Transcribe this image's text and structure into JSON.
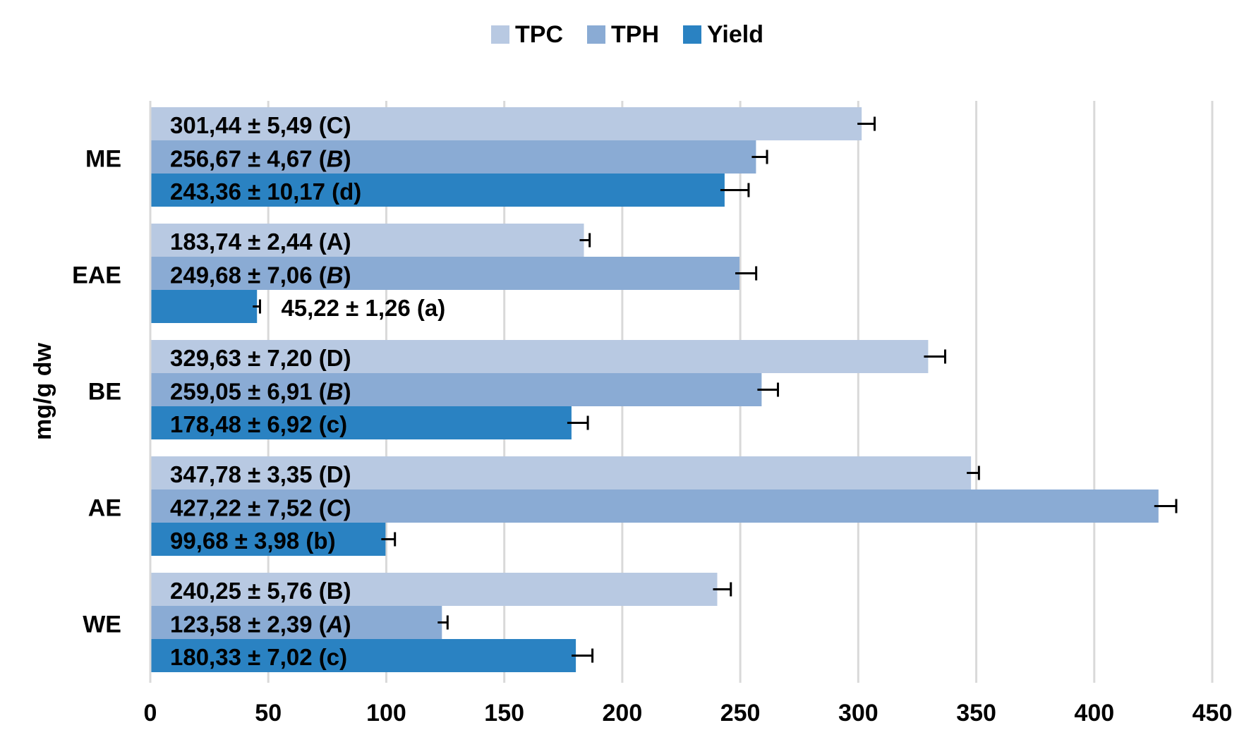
{
  "chart_data": {
    "type": "bar",
    "orientation": "horizontal",
    "categories": [
      "ME",
      "EAE",
      "BE",
      "AE",
      "WE"
    ],
    "ylabel": "mg/g dw",
    "xlim": [
      0,
      450
    ],
    "xticks": [
      0,
      50,
      100,
      150,
      200,
      250,
      300,
      350,
      400,
      450
    ],
    "grid": "vertical",
    "legend_position": "top",
    "series": [
      {
        "name": "TPC",
        "color": "#b8c9e2",
        "values": [
          301.44,
          183.74,
          329.63,
          347.78,
          240.25
        ],
        "errors": [
          5.49,
          2.44,
          7.2,
          3.35,
          5.76
        ],
        "labels": [
          "301,44 ± 5,49 (C)",
          "183,74 ± 2,44 (A)",
          "329,63 ± 7,20 (D)",
          "347,78 ± 3,35 (D)",
          "240,25 ± 5,76 (B)"
        ]
      },
      {
        "name": "TPH",
        "color": "#8aabd4",
        "values": [
          256.67,
          249.68,
          259.05,
          427.22,
          123.58
        ],
        "errors": [
          4.67,
          7.06,
          6.91,
          7.52,
          2.39
        ],
        "labels": [
          "256,67 ± 4,67 (B)",
          "249,68 ± 7,06 (B)",
          "259,05 ± 6,91 (B)",
          "427,22 ± 7,52 (C)",
          "123,58 ± 2,39 (A)"
        ]
      },
      {
        "name": "Yield",
        "color": "#2a82c2",
        "values": [
          243.36,
          45.22,
          178.48,
          99.68,
          180.33
        ],
        "errors": [
          10.17,
          1.26,
          6.92,
          3.98,
          7.02
        ],
        "labels": [
          "243,36 ± 10,17 (d)",
          "45,22 ± 1,26 (a)",
          "178,48 ± 6,92 (c)",
          "99,68 ± 3,98 (b)",
          "180,33 ± 7,02 (c)"
        ]
      }
    ]
  }
}
